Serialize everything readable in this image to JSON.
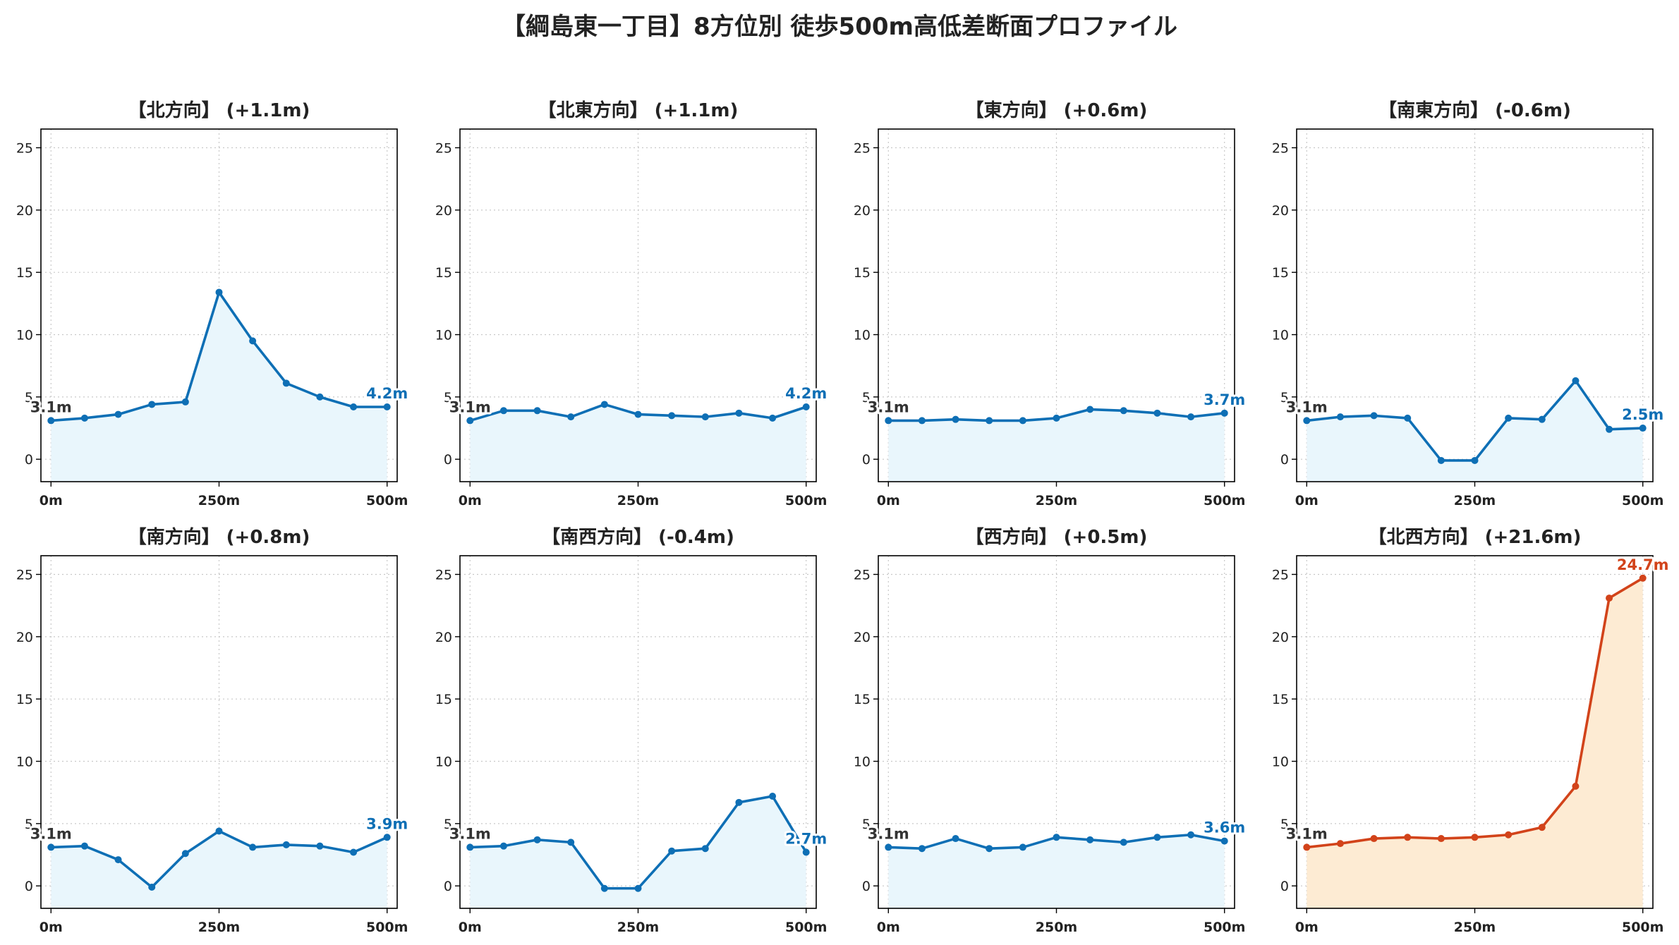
{
  "title": "【綱島東一丁目】8方位別 徒歩500m高低差断面プロファイル",
  "chart_data": [
    {
      "type": "line",
      "title": "【北方向】 (+1.1m)",
      "color": "#0e6fb5",
      "fill": "#e9f6fc",
      "x": [
        0,
        50,
        100,
        150,
        200,
        250,
        300,
        350,
        400,
        450,
        500
      ],
      "values": [
        3.1,
        3.3,
        3.6,
        4.4,
        4.6,
        13.4,
        9.5,
        6.1,
        5.0,
        4.2,
        4.2
      ],
      "start_label": "3.1m",
      "end_label": "4.2m",
      "x_ticks": [
        "0m",
        "250m",
        "500m"
      ],
      "y_ticks": [
        0,
        5,
        10,
        15,
        20,
        25
      ],
      "ylim": [
        -1.8,
        26.5
      ],
      "grid": true
    },
    {
      "type": "line",
      "title": "【北東方向】 (+1.1m)",
      "color": "#0e6fb5",
      "fill": "#e9f6fc",
      "x": [
        0,
        50,
        100,
        150,
        200,
        250,
        300,
        350,
        400,
        450,
        500
      ],
      "values": [
        3.1,
        3.9,
        3.9,
        3.4,
        4.4,
        3.6,
        3.5,
        3.4,
        3.7,
        3.3,
        4.2
      ],
      "start_label": "3.1m",
      "end_label": "4.2m",
      "x_ticks": [
        "0m",
        "250m",
        "500m"
      ],
      "y_ticks": [
        0,
        5,
        10,
        15,
        20,
        25
      ],
      "ylim": [
        -1.8,
        26.5
      ],
      "grid": true
    },
    {
      "type": "line",
      "title": "【東方向】 (+0.6m)",
      "color": "#0e6fb5",
      "fill": "#e9f6fc",
      "x": [
        0,
        50,
        100,
        150,
        200,
        250,
        300,
        350,
        400,
        450,
        500
      ],
      "values": [
        3.1,
        3.1,
        3.2,
        3.1,
        3.1,
        3.3,
        4.0,
        3.9,
        3.7,
        3.4,
        3.7
      ],
      "start_label": "3.1m",
      "end_label": "3.7m",
      "x_ticks": [
        "0m",
        "250m",
        "500m"
      ],
      "y_ticks": [
        0,
        5,
        10,
        15,
        20,
        25
      ],
      "ylim": [
        -1.8,
        26.5
      ],
      "grid": true
    },
    {
      "type": "line",
      "title": "【南東方向】 (-0.6m)",
      "color": "#0e6fb5",
      "fill": "#e9f6fc",
      "x": [
        0,
        50,
        100,
        150,
        200,
        250,
        300,
        350,
        400,
        450,
        500
      ],
      "values": [
        3.1,
        3.4,
        3.5,
        3.3,
        -0.1,
        -0.1,
        3.3,
        3.2,
        6.3,
        2.4,
        2.5
      ],
      "start_label": "3.1m",
      "end_label": "2.5m",
      "x_ticks": [
        "0m",
        "250m",
        "500m"
      ],
      "y_ticks": [
        0,
        5,
        10,
        15,
        20,
        25
      ],
      "ylim": [
        -1.8,
        26.5
      ],
      "grid": true
    },
    {
      "type": "line",
      "title": "【南方向】 (+0.8m)",
      "color": "#0e6fb5",
      "fill": "#e9f6fc",
      "x": [
        0,
        50,
        100,
        150,
        200,
        250,
        300,
        350,
        400,
        450,
        500
      ],
      "values": [
        3.1,
        3.2,
        2.1,
        -0.1,
        2.6,
        4.4,
        3.1,
        3.3,
        3.2,
        2.7,
        3.9
      ],
      "start_label": "3.1m",
      "end_label": "3.9m",
      "x_ticks": [
        "0m",
        "250m",
        "500m"
      ],
      "y_ticks": [
        0,
        5,
        10,
        15,
        20,
        25
      ],
      "ylim": [
        -1.8,
        26.5
      ],
      "grid": true
    },
    {
      "type": "line",
      "title": "【南西方向】 (-0.4m)",
      "color": "#0e6fb5",
      "fill": "#e9f6fc",
      "x": [
        0,
        50,
        100,
        150,
        200,
        250,
        300,
        350,
        400,
        450,
        500
      ],
      "values": [
        3.1,
        3.2,
        3.7,
        3.5,
        -0.2,
        -0.2,
        2.8,
        3.0,
        6.7,
        7.2,
        2.7
      ],
      "start_label": "3.1m",
      "end_label": "2.7m",
      "x_ticks": [
        "0m",
        "250m",
        "500m"
      ],
      "y_ticks": [
        0,
        5,
        10,
        15,
        20,
        25
      ],
      "ylim": [
        -1.8,
        26.5
      ],
      "grid": true
    },
    {
      "type": "line",
      "title": "【西方向】 (+0.5m)",
      "color": "#0e6fb5",
      "fill": "#e9f6fc",
      "x": [
        0,
        50,
        100,
        150,
        200,
        250,
        300,
        350,
        400,
        450,
        500
      ],
      "values": [
        3.1,
        3.0,
        3.8,
        3.0,
        3.1,
        3.9,
        3.7,
        3.5,
        3.9,
        4.1,
        3.6
      ],
      "start_label": "3.1m",
      "end_label": "3.6m",
      "x_ticks": [
        "0m",
        "250m",
        "500m"
      ],
      "y_ticks": [
        0,
        5,
        10,
        15,
        20,
        25
      ],
      "ylim": [
        -1.8,
        26.5
      ],
      "grid": true
    },
    {
      "type": "line",
      "title": "【北西方向】 (+21.6m)",
      "color": "#d2431a",
      "fill": "#fdebd3",
      "x": [
        0,
        50,
        100,
        150,
        200,
        250,
        300,
        350,
        400,
        450,
        500
      ],
      "values": [
        3.1,
        3.4,
        3.8,
        3.9,
        3.8,
        3.9,
        4.1,
        4.7,
        8.0,
        23.1,
        24.7
      ],
      "start_label": "3.1m",
      "end_label": "24.7m",
      "x_ticks": [
        "0m",
        "250m",
        "500m"
      ],
      "y_ticks": [
        0,
        5,
        10,
        15,
        20,
        25
      ],
      "ylim": [
        -1.8,
        26.5
      ],
      "grid": true
    }
  ]
}
